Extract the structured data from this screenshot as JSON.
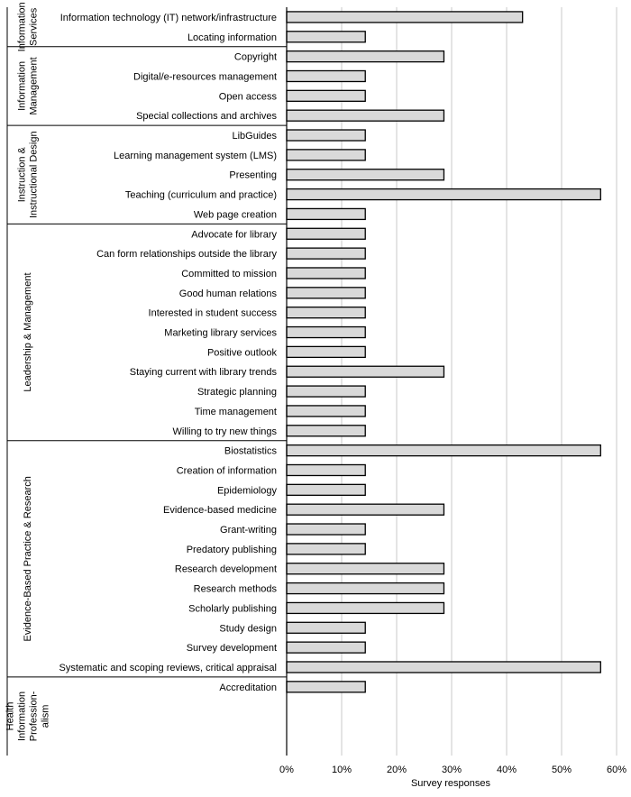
{
  "chart_data": {
    "type": "bar",
    "orientation": "horizontal",
    "xlabel": "Survey responses",
    "xlim": [
      0,
      60
    ],
    "xticks": [
      "0%",
      "10%",
      "20%",
      "30%",
      "40%",
      "50%",
      "60%"
    ],
    "grid": "vertical",
    "bar_color": "#d9d9d9",
    "bar_edge_color": "#000000",
    "groups": [
      {
        "name": "Information Services",
        "name_lines": [
          "Information",
          "Services"
        ],
        "items": [
          {
            "label": "Information technology (IT) network/infrastructure",
            "value": 42.9
          },
          {
            "label": "Locating information",
            "value": 14.3
          }
        ]
      },
      {
        "name": "Information Management",
        "name_lines": [
          "Information",
          "Management"
        ],
        "items": [
          {
            "label": "Copyright",
            "value": 28.6
          },
          {
            "label": "Digital/e-resources management",
            "value": 14.3
          },
          {
            "label": "Open access",
            "value": 14.3
          },
          {
            "label": "Special collections and archives",
            "value": 28.6
          }
        ]
      },
      {
        "name": "Instruction & Instructional Design",
        "name_lines": [
          "Instruction &",
          "Instructional Design"
        ],
        "items": [
          {
            "label": "LibGuides",
            "value": 14.3
          },
          {
            "label": "Learning management system (LMS)",
            "value": 14.3
          },
          {
            "label": "Presenting",
            "value": 28.6
          },
          {
            "label": "Teaching (curriculum and practice)",
            "value": 57.1
          },
          {
            "label": "Web page creation",
            "value": 14.3
          }
        ]
      },
      {
        "name": "Leadership & Management",
        "name_lines": [
          "Leadership & Management"
        ],
        "items": [
          {
            "label": "Advocate for library",
            "value": 14.3
          },
          {
            "label": "Can form relationships outside the library",
            "value": 14.3
          },
          {
            "label": "Committed to mission",
            "value": 14.3
          },
          {
            "label": "Good human relations",
            "value": 14.3
          },
          {
            "label": "Interested in student success",
            "value": 14.3
          },
          {
            "label": "Marketing library services",
            "value": 14.3
          },
          {
            "label": "Positive outlook",
            "value": 14.3
          },
          {
            "label": "Staying current with library trends",
            "value": 28.6
          },
          {
            "label": "Strategic planning",
            "value": 14.3
          },
          {
            "label": "Time management",
            "value": 14.3
          },
          {
            "label": "Willing to try new things",
            "value": 14.3
          }
        ]
      },
      {
        "name": "Evidence-Based Practice & Research",
        "name_lines": [
          "Evidence-Based Practice & Research"
        ],
        "items": [
          {
            "label": "Biostatistics",
            "value": 57.1
          },
          {
            "label": "Creation of information",
            "value": 14.3
          },
          {
            "label": "Epidemiology",
            "value": 14.3
          },
          {
            "label": "Evidence-based medicine",
            "value": 28.6
          },
          {
            "label": "Grant-writing",
            "value": 14.3
          },
          {
            "label": "Predatory publishing",
            "value": 14.3
          },
          {
            "label": "Research development",
            "value": 28.6
          },
          {
            "label": "Research methods",
            "value": 28.6
          },
          {
            "label": "Scholarly publishing",
            "value": 28.6
          },
          {
            "label": "Study design",
            "value": 14.3
          },
          {
            "label": "Survey development",
            "value": 14.3
          },
          {
            "label": "Systematic and scoping reviews, critical appraisal",
            "value": 57.1
          }
        ]
      },
      {
        "name": "Health Information Professionalism",
        "name_lines": [
          "Health",
          "Information",
          "Profession-",
          "alism"
        ],
        "items": [
          {
            "label": "Accreditation",
            "value": 14.3
          }
        ]
      }
    ]
  }
}
